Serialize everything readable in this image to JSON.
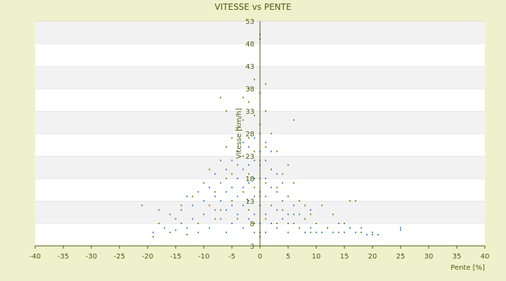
{
  "chart_data": {
    "type": "scatter",
    "title": "VITESSE vs PENTE",
    "xlabel": "Pente [%]",
    "ylabel": "Vitesse [km/h]",
    "xlim": [
      -40,
      40
    ],
    "ylim": [
      3,
      53
    ],
    "x_ticks": [
      "-40",
      "-35",
      "-30",
      "-25",
      "-20",
      "-15",
      "-10",
      "-5",
      "0",
      "5",
      "10",
      "15",
      "20",
      "25",
      "30",
      "35",
      "40"
    ],
    "y_ticks": [
      "3",
      "8",
      "13",
      "18",
      "23",
      "28",
      "33",
      "38",
      "43",
      "48",
      "53"
    ],
    "grid": true,
    "legend": "none",
    "colors": {
      "background": "#eef2cc",
      "plot_band_light": "#ffffff",
      "plot_band_dark": "#f2f2f2",
      "axis": "#4f5a10",
      "series_blue": "#3b8fd1",
      "series_olive": "#8c8c1e"
    },
    "series": [
      {
        "color": "#3b8fd1",
        "points": [
          [
            -21,
            12
          ],
          [
            -19,
            6
          ],
          [
            -18,
            11
          ],
          [
            -17,
            7
          ],
          [
            -16,
            10
          ],
          [
            -15,
            6.5
          ],
          [
            -14,
            8
          ],
          [
            -14,
            11
          ],
          [
            -13,
            14
          ],
          [
            -13,
            7
          ],
          [
            -12,
            9
          ],
          [
            -12,
            12
          ],
          [
            -11,
            6
          ],
          [
            -11,
            15
          ],
          [
            -10,
            10
          ],
          [
            -10,
            13
          ],
          [
            -9,
            16
          ],
          [
            -9,
            7
          ],
          [
            -8,
            11
          ],
          [
            -8,
            14
          ],
          [
            -8,
            19
          ],
          [
            -7,
            9
          ],
          [
            -7,
            13
          ],
          [
            -7,
            17
          ],
          [
            -6,
            6
          ],
          [
            -6,
            11
          ],
          [
            -6,
            15
          ],
          [
            -6,
            20
          ],
          [
            -5,
            8
          ],
          [
            -5,
            12
          ],
          [
            -5,
            16
          ],
          [
            -5,
            22
          ],
          [
            -4,
            10
          ],
          [
            -4,
            14
          ],
          [
            -4,
            18
          ],
          [
            -4,
            24
          ],
          [
            -3,
            7
          ],
          [
            -3,
            12
          ],
          [
            -3,
            16
          ],
          [
            -3,
            20
          ],
          [
            -3,
            26
          ],
          [
            -2,
            9
          ],
          [
            -2,
            13
          ],
          [
            -2,
            17
          ],
          [
            -2,
            21
          ],
          [
            -2,
            25
          ],
          [
            -1,
            6
          ],
          [
            -1,
            10
          ],
          [
            -1,
            14
          ],
          [
            -1,
            18
          ],
          [
            -1,
            22
          ],
          [
            -1,
            27
          ],
          [
            0,
            5
          ],
          [
            0,
            8
          ],
          [
            0,
            12
          ],
          [
            0,
            15
          ],
          [
            0,
            18
          ],
          [
            0,
            21
          ],
          [
            0,
            24
          ],
          [
            0,
            28
          ],
          [
            1,
            6
          ],
          [
            1,
            10
          ],
          [
            1,
            14
          ],
          [
            1,
            18
          ],
          [
            1,
            22
          ],
          [
            1,
            26
          ],
          [
            2,
            8
          ],
          [
            2,
            12
          ],
          [
            2,
            16
          ],
          [
            2,
            20
          ],
          [
            2,
            24
          ],
          [
            3,
            7
          ],
          [
            3,
            11
          ],
          [
            3,
            15
          ],
          [
            3,
            19
          ],
          [
            4,
            9
          ],
          [
            4,
            13
          ],
          [
            4,
            17
          ],
          [
            5,
            6
          ],
          [
            5,
            10
          ],
          [
            5,
            14
          ],
          [
            6,
            8
          ],
          [
            6,
            12
          ],
          [
            7,
            7
          ],
          [
            7,
            10
          ],
          [
            8,
            6
          ],
          [
            8,
            9
          ],
          [
            9,
            7
          ],
          [
            9,
            11
          ],
          [
            10,
            6
          ],
          [
            10,
            8
          ],
          [
            11,
            6
          ],
          [
            12,
            7
          ],
          [
            13,
            6
          ],
          [
            14,
            8
          ],
          [
            15,
            6
          ],
          [
            16,
            7
          ],
          [
            17,
            6
          ],
          [
            18,
            7
          ],
          [
            19,
            5.5
          ],
          [
            20,
            6
          ],
          [
            21,
            5.5
          ],
          [
            25,
            6.5
          ],
          [
            25,
            7
          ]
        ]
      },
      {
        "color": "#8c8c1e",
        "points": [
          [
            -19,
            5
          ],
          [
            -18,
            8
          ],
          [
            -16,
            6
          ],
          [
            -15,
            9
          ],
          [
            -14,
            12
          ],
          [
            -13,
            5.5
          ],
          [
            -12,
            14
          ],
          [
            -11,
            8
          ],
          [
            -10,
            17
          ],
          [
            -9,
            12
          ],
          [
            -9,
            20
          ],
          [
            -8,
            9
          ],
          [
            -8,
            15
          ],
          [
            -7,
            22
          ],
          [
            -7,
            11
          ],
          [
            -7,
            36
          ],
          [
            -6,
            18
          ],
          [
            -6,
            25
          ],
          [
            -6,
            33
          ],
          [
            -5,
            13
          ],
          [
            -5,
            19
          ],
          [
            -5,
            27
          ],
          [
            -4,
            9
          ],
          [
            -4,
            21
          ],
          [
            -4,
            29
          ],
          [
            -3,
            15
          ],
          [
            -3,
            23
          ],
          [
            -3,
            31
          ],
          [
            -3,
            36
          ],
          [
            -2,
            11
          ],
          [
            -2,
            19
          ],
          [
            -2,
            27
          ],
          [
            -2,
            35
          ],
          [
            -2,
            38
          ],
          [
            -1,
            8
          ],
          [
            -1,
            16
          ],
          [
            -1,
            24
          ],
          [
            -1,
            32
          ],
          [
            -1,
            40
          ],
          [
            0,
            6
          ],
          [
            0,
            14
          ],
          [
            0,
            22
          ],
          [
            0,
            30
          ],
          [
            0,
            37
          ],
          [
            0,
            49
          ],
          [
            0,
            50
          ],
          [
            1,
            9
          ],
          [
            1,
            17
          ],
          [
            1,
            25
          ],
          [
            1,
            33
          ],
          [
            1,
            39
          ],
          [
            2,
            12
          ],
          [
            2,
            20
          ],
          [
            2,
            28
          ],
          [
            3,
            8
          ],
          [
            3,
            16
          ],
          [
            3,
            24
          ],
          [
            4,
            11
          ],
          [
            4,
            19
          ],
          [
            5,
            8
          ],
          [
            5,
            14
          ],
          [
            5,
            21
          ],
          [
            6,
            10
          ],
          [
            6,
            17
          ],
          [
            6,
            31
          ],
          [
            7,
            7
          ],
          [
            7,
            13
          ],
          [
            8,
            9
          ],
          [
            8,
            12
          ],
          [
            9,
            6
          ],
          [
            9,
            10
          ],
          [
            10,
            8
          ],
          [
            11,
            12
          ],
          [
            12,
            7
          ],
          [
            13,
            10
          ],
          [
            14,
            6
          ],
          [
            15,
            8
          ],
          [
            16,
            13
          ],
          [
            17,
            13
          ],
          [
            18,
            6
          ],
          [
            20,
            5.5
          ]
        ]
      }
    ]
  }
}
